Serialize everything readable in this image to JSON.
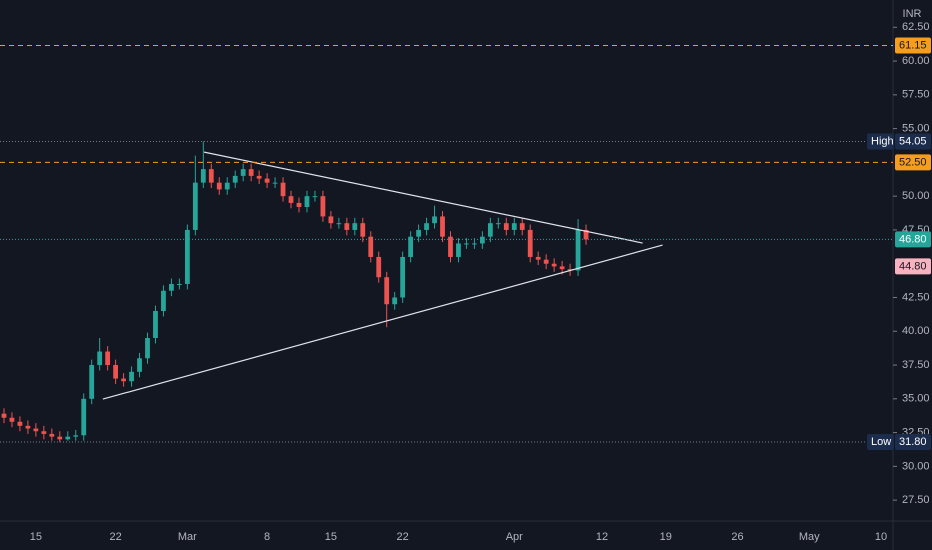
{
  "chart_data": {
    "type": "candlestick",
    "currency": "INR",
    "categories": [
      null,
      null,
      null,
      null,
      "15",
      null,
      null,
      null,
      null,
      null,
      null,
      null,
      null,
      null,
      "22",
      null,
      null,
      null,
      null,
      null,
      null,
      null,
      null,
      "Mar",
      null,
      null,
      null,
      null,
      null,
      null,
      null,
      null,
      null,
      "8",
      null,
      null,
      null,
      null,
      null,
      null,
      null,
      "15",
      null,
      null,
      null,
      null,
      null,
      null,
      null,
      null,
      "22",
      null,
      null,
      null,
      null,
      null,
      null,
      null,
      null,
      null,
      null,
      null,
      null,
      null,
      "Apr",
      null,
      null,
      null,
      null,
      null,
      null,
      null,
      null,
      null,
      null,
      "12",
      null,
      null,
      null,
      null,
      null,
      null,
      null,
      "19",
      null,
      null,
      null,
      null,
      null,
      null,
      null,
      null,
      "26",
      null,
      null,
      null,
      null,
      null,
      null,
      null,
      null,
      "May",
      null,
      null,
      null,
      null,
      null,
      null,
      null,
      null,
      "10",
      null
    ],
    "open": [
      33.9,
      33.6,
      33.3,
      33.0,
      32.8,
      32.6,
      32.4,
      32.2,
      32.0,
      32.2,
      32.3,
      35.0,
      37.5,
      38.5,
      37.5,
      36.5,
      36.3,
      37.0,
      38.0,
      39.5,
      41.5,
      43.0,
      43.5,
      43.5,
      47.5,
      51.0,
      52.0,
      51.0,
      50.5,
      51.0,
      51.5,
      52.0,
      51.5,
      51.3,
      51.0,
      51.0,
      50.0,
      49.5,
      49.2,
      50.0,
      50.0,
      48.5,
      48.0,
      48.0,
      47.5,
      48.0,
      47.0,
      45.5,
      44.0,
      42.0,
      42.5,
      45.5,
      47.0,
      47.5,
      48.0,
      48.5,
      47.0,
      45.5,
      46.5,
      46.5,
      46.5,
      47.0,
      48.0,
      48.0,
      47.5,
      48.0,
      47.5,
      45.5,
      45.3,
      45.0,
      44.8,
      44.6,
      44.5,
      47.5,
      null,
      null,
      null,
      null,
      null,
      null,
      null,
      null,
      null,
      null,
      null,
      null,
      null,
      null,
      null,
      null,
      null,
      null,
      null,
      null,
      null,
      null,
      null,
      null,
      null,
      null,
      null,
      null,
      null,
      null,
      null,
      null,
      null,
      null,
      null,
      null,
      null,
      null
    ],
    "high": [
      34.3,
      34.0,
      33.7,
      33.4,
      33.2,
      33.0,
      32.8,
      32.6,
      32.6,
      32.7,
      35.4,
      37.9,
      39.5,
      38.9,
      37.9,
      36.9,
      37.4,
      38.4,
      39.9,
      41.9,
      43.4,
      43.9,
      43.9,
      47.9,
      53.0,
      54.05,
      52.4,
      51.4,
      51.4,
      51.9,
      52.4,
      52.4,
      51.9,
      51.7,
      51.4,
      51.4,
      50.4,
      49.9,
      50.4,
      50.4,
      50.4,
      48.9,
      48.4,
      48.4,
      48.4,
      48.4,
      47.4,
      45.9,
      44.4,
      42.9,
      45.9,
      47.4,
      47.9,
      48.4,
      49.3,
      48.9,
      47.4,
      46.9,
      46.9,
      46.9,
      47.4,
      48.4,
      48.4,
      48.4,
      48.4,
      48.4,
      47.9,
      45.9,
      45.7,
      45.4,
      45.2,
      45.0,
      48.3,
      47.9,
      null,
      null,
      null,
      null,
      null,
      null,
      null,
      null,
      null,
      null,
      null,
      null,
      null,
      null,
      null,
      null,
      null,
      null,
      null,
      null,
      null,
      null,
      null,
      null,
      null,
      null,
      null,
      null,
      null,
      null,
      null,
      null,
      null,
      null,
      null,
      null,
      null,
      null
    ],
    "low": [
      33.2,
      32.9,
      32.6,
      32.4,
      32.2,
      32.0,
      31.9,
      31.8,
      31.9,
      31.9,
      31.9,
      34.6,
      37.1,
      37.1,
      36.1,
      35.9,
      35.9,
      36.6,
      37.6,
      39.1,
      41.1,
      42.6,
      43.1,
      43.1,
      47.1,
      50.6,
      50.6,
      50.1,
      50.1,
      50.6,
      51.1,
      51.1,
      50.9,
      50.6,
      50.6,
      49.6,
      49.1,
      48.8,
      48.8,
      49.6,
      48.1,
      47.6,
      47.6,
      47.1,
      47.1,
      46.6,
      45.1,
      43.6,
      40.3,
      41.6,
      42.1,
      45.1,
      46.6,
      47.1,
      47.6,
      46.6,
      45.1,
      45.1,
      46.1,
      46.1,
      46.1,
      46.6,
      47.6,
      47.1,
      47.1,
      47.1,
      45.1,
      44.9,
      44.6,
      44.4,
      44.2,
      44.1,
      44.1,
      46.4,
      null,
      null,
      null,
      null,
      null,
      null,
      null,
      null,
      null,
      null,
      null,
      null,
      null,
      null,
      null,
      null,
      null,
      null,
      null,
      null,
      null,
      null,
      null,
      null,
      null,
      null,
      null,
      null,
      null,
      null,
      null,
      null,
      null,
      null,
      null,
      null,
      null,
      null
    ],
    "close": [
      33.6,
      33.3,
      33.0,
      32.8,
      32.6,
      32.4,
      32.2,
      32.0,
      32.2,
      32.3,
      35.0,
      37.5,
      38.5,
      37.5,
      36.5,
      36.3,
      37.0,
      38.0,
      39.5,
      41.5,
      43.0,
      43.5,
      43.5,
      47.5,
      51.0,
      52.0,
      51.0,
      50.5,
      51.0,
      51.5,
      52.0,
      51.5,
      51.3,
      51.0,
      51.0,
      50.0,
      49.5,
      49.2,
      50.0,
      50.0,
      48.5,
      48.0,
      48.0,
      47.5,
      48.0,
      47.0,
      45.5,
      44.0,
      42.0,
      42.5,
      45.5,
      47.0,
      47.5,
      48.0,
      48.5,
      47.0,
      45.5,
      46.5,
      46.5,
      46.5,
      47.0,
      48.0,
      48.0,
      47.5,
      48.0,
      47.5,
      45.5,
      45.3,
      45.0,
      44.8,
      44.6,
      44.5,
      47.5,
      46.8,
      null,
      null,
      null,
      null,
      null,
      null,
      null,
      null,
      null,
      null,
      null,
      null,
      null,
      null,
      null,
      null,
      null,
      null,
      null,
      null,
      null,
      null,
      null,
      null,
      null,
      null,
      null,
      null,
      null,
      null,
      null,
      null,
      null,
      null,
      null,
      null,
      null,
      null
    ],
    "up_color": "#26a69a",
    "down_color": "#ef5350",
    "ylim": [
      26.03,
      64.52
    ],
    "yticks": [
      {
        "value": 27.5,
        "label": "27.50"
      },
      {
        "value": 30,
        "label": "30.00"
      },
      {
        "value": 32.5,
        "label": "32.50"
      },
      {
        "value": 35,
        "label": "35.00"
      },
      {
        "value": 37.5,
        "label": "37.50"
      },
      {
        "value": 40,
        "label": "40.00"
      },
      {
        "value": 42.5,
        "label": "42.50"
      },
      {
        "value": 47.5,
        "label": "47.50"
      },
      {
        "value": 50,
        "label": "50.00"
      },
      {
        "value": 55,
        "label": "55.00"
      },
      {
        "value": 57.5,
        "label": "57.50"
      },
      {
        "value": 60,
        "label": "60.00"
      },
      {
        "value": 62.5,
        "label": "62.50"
      }
    ],
    "levels": [
      {
        "value": 61.15,
        "label": "61.15",
        "color": "#f59d1c",
        "text_color": "#131722",
        "line": "dashed"
      },
      {
        "value": 54.05,
        "label": "54.05",
        "name": "High",
        "color": "#1c2c4c",
        "text_color": "#ffffff",
        "line": "dotted",
        "line_color": "#787b86"
      },
      {
        "value": 52.5,
        "label": "52.50",
        "color": "#f59d1c",
        "text_color": "#131722",
        "line": "dashed"
      },
      {
        "value": 46.8,
        "label": "46.80",
        "color": "#26a69a",
        "text_color": "#ffffff",
        "line": "dotted"
      },
      {
        "value": 44.8,
        "label": "44.80",
        "color": "#f7b3c0",
        "text_color": "#131722",
        "line": "none"
      },
      {
        "value": 31.8,
        "label": "31.80",
        "name": "Low",
        "color": "#1c2c4c",
        "text_color": "#ffffff",
        "line": "dotted",
        "line_color": "#787b86"
      }
    ],
    "trendlines": [
      {
        "x": [
          25.1,
          80.1
        ],
        "y": [
          53.26,
          46.53
        ],
        "color": "#e0e3eb"
      },
      {
        "x": [
          12.4,
          82.6
        ],
        "y": [
          34.98,
          46.38
        ],
        "color": "#e0e3eb"
      }
    ]
  }
}
